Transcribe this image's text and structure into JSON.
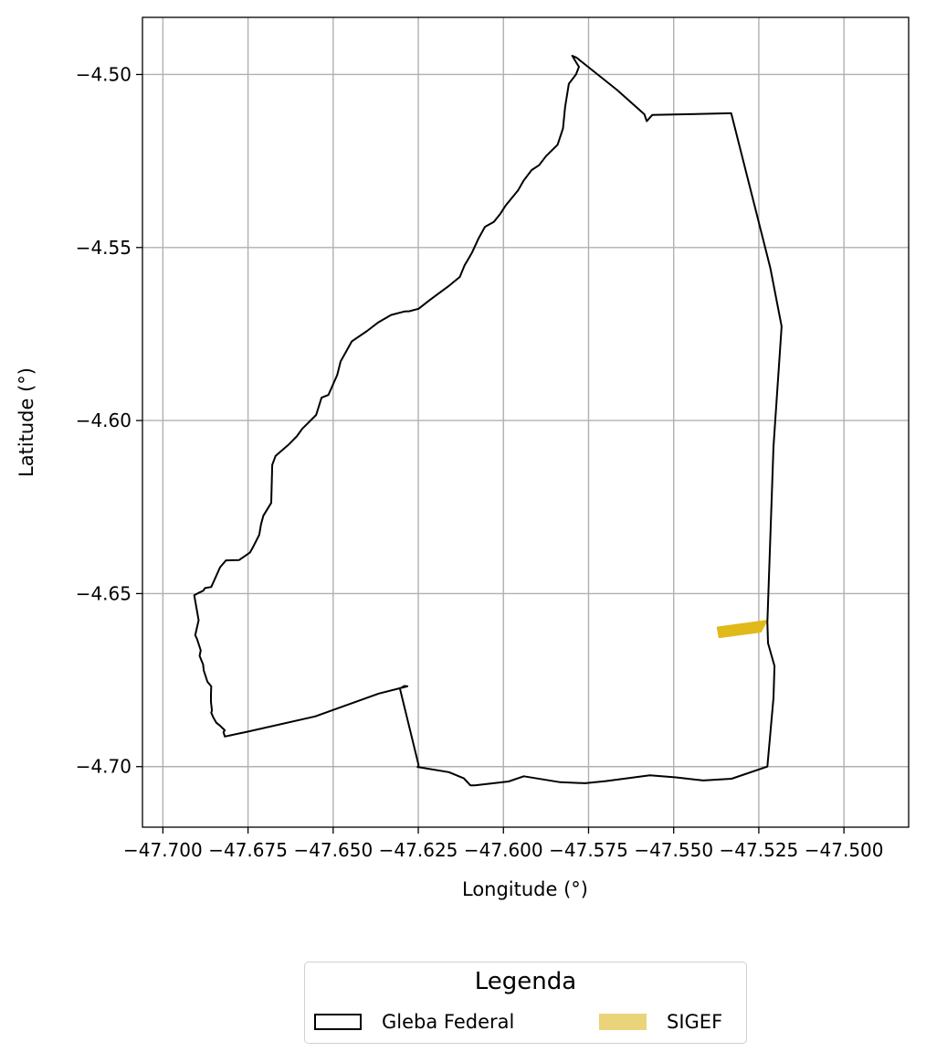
{
  "chart_data": {
    "type": "map",
    "xlabel": "Longitude (°)",
    "ylabel": "Latitude (°)",
    "xlim": [
      -47.706,
      -47.481
    ],
    "ylim": [
      -4.7175,
      -4.4835
    ],
    "xticks": [
      -47.7,
      -47.675,
      -47.65,
      -47.625,
      -47.6,
      -47.575,
      -47.55,
      -47.525,
      -47.5
    ],
    "xtick_labels": [
      "−47.700",
      "−47.675",
      "−47.650",
      "−47.625",
      "−47.600",
      "−47.575",
      "−47.550",
      "−47.525",
      "−47.500"
    ],
    "yticks": [
      -4.5,
      -4.55,
      -4.6,
      -4.65,
      -4.7
    ],
    "ytick_labels": [
      "−4.50",
      "−4.55",
      "−4.60",
      "−4.65",
      "−4.70"
    ],
    "grid": true,
    "legend_placement": "bottom-center",
    "legend": {
      "title": "Legenda",
      "entries": [
        {
          "label": "Gleba Federal",
          "style": "outline",
          "color": "#000000"
        },
        {
          "label": "SIGEF",
          "style": "fill",
          "color": "#e9d47a"
        }
      ]
    },
    "layers": [
      {
        "name": "Gleba Federal",
        "edge_color": "#000000",
        "fill": "none",
        "polygon": [
          [
            -47.5798,
            -4.4946
          ],
          [
            -47.5786,
            -4.4951
          ],
          [
            -47.5666,
            -4.5045
          ],
          [
            -47.5586,
            -4.5115
          ],
          [
            -47.5579,
            -4.5135
          ],
          [
            -47.5563,
            -4.5117
          ],
          [
            -47.5331,
            -4.5112
          ],
          [
            -47.5269,
            -4.5353
          ],
          [
            -47.5216,
            -4.556
          ],
          [
            -47.5183,
            -4.5728
          ],
          [
            -47.5207,
            -4.6075
          ],
          [
            -47.5225,
            -4.6583
          ],
          [
            -47.5223,
            -4.6643
          ],
          [
            -47.5204,
            -4.6709
          ],
          [
            -47.5207,
            -4.6801
          ],
          [
            -47.5225,
            -4.7
          ],
          [
            -47.533,
            -4.7035
          ],
          [
            -47.5413,
            -4.704
          ],
          [
            -47.5493,
            -4.7031
          ],
          [
            -47.557,
            -4.7025
          ],
          [
            -47.57,
            -4.7042
          ],
          [
            -47.576,
            -4.7048
          ],
          [
            -47.5833,
            -4.7045
          ],
          [
            -47.594,
            -4.7028
          ],
          [
            -47.5985,
            -4.7043
          ],
          [
            -47.6084,
            -4.7054
          ],
          [
            -47.6097,
            -4.7054
          ],
          [
            -47.6116,
            -4.7034
          ],
          [
            -47.616,
            -4.7016
          ],
          [
            -47.6252,
            -4.7001
          ],
          [
            -47.6249,
            -4.6996
          ],
          [
            -47.6304,
            -4.6774
          ],
          [
            -47.6291,
            -4.6767
          ],
          [
            -47.6282,
            -4.6768
          ],
          [
            -47.6366,
            -4.6789
          ],
          [
            -47.6553,
            -4.6855
          ],
          [
            -47.6751,
            -4.6899
          ],
          [
            -47.6818,
            -4.6913
          ],
          [
            -47.6822,
            -4.69
          ],
          [
            -47.6818,
            -4.6895
          ],
          [
            -47.6833,
            -4.6881
          ],
          [
            -47.6843,
            -4.6873
          ],
          [
            -47.6852,
            -4.6858
          ],
          [
            -47.6858,
            -4.6844
          ],
          [
            -47.6856,
            -4.6838
          ],
          [
            -47.6859,
            -4.6813
          ],
          [
            -47.6859,
            -4.6793
          ],
          [
            -47.6858,
            -4.6768
          ],
          [
            -47.6869,
            -4.6755
          ],
          [
            -47.688,
            -4.6722
          ],
          [
            -47.6882,
            -4.6705
          ],
          [
            -47.6892,
            -4.668
          ],
          [
            -47.6889,
            -4.6664
          ],
          [
            -47.69,
            -4.6631
          ],
          [
            -47.6905,
            -4.662
          ],
          [
            -47.6895,
            -4.6577
          ],
          [
            -47.6908,
            -4.6505
          ],
          [
            -47.6893,
            -4.6497
          ],
          [
            -47.6882,
            -4.6492
          ],
          [
            -47.6876,
            -4.6484
          ],
          [
            -47.6858,
            -4.6481
          ],
          [
            -47.6851,
            -4.6466
          ],
          [
            -47.6832,
            -4.6424
          ],
          [
            -47.6815,
            -4.6404
          ],
          [
            -47.6776,
            -4.6403
          ],
          [
            -47.6744,
            -4.6381
          ],
          [
            -47.6734,
            -4.6363
          ],
          [
            -47.6717,
            -4.633
          ],
          [
            -47.6712,
            -4.63
          ],
          [
            -47.6705,
            -4.6275
          ],
          [
            -47.6682,
            -4.6238
          ],
          [
            -47.6679,
            -4.6128
          ],
          [
            -47.6669,
            -4.6102
          ],
          [
            -47.663,
            -4.6069
          ],
          [
            -47.6607,
            -4.6046
          ],
          [
            -47.6591,
            -4.6024
          ],
          [
            -47.655,
            -4.5984
          ],
          [
            -47.6534,
            -4.5934
          ],
          [
            -47.6514,
            -4.5926
          ],
          [
            -47.6488,
            -4.5868
          ],
          [
            -47.6478,
            -4.5829
          ],
          [
            -47.6445,
            -4.5771
          ],
          [
            -47.64,
            -4.5741
          ],
          [
            -47.6367,
            -4.5716
          ],
          [
            -47.633,
            -4.5695
          ],
          [
            -47.6291,
            -4.5685
          ],
          [
            -47.6276,
            -4.5684
          ],
          [
            -47.6249,
            -4.5677
          ],
          [
            -47.6218,
            -4.5653
          ],
          [
            -47.6163,
            -4.5613
          ],
          [
            -47.6128,
            -4.5585
          ],
          [
            -47.6114,
            -4.5551
          ],
          [
            -47.6107,
            -4.554
          ],
          [
            -47.6092,
            -4.5514
          ],
          [
            -47.6073,
            -4.5474
          ],
          [
            -47.6054,
            -4.544
          ],
          [
            -47.6028,
            -4.5426
          ],
          [
            -47.601,
            -4.5404
          ],
          [
            -47.5993,
            -4.5378
          ],
          [
            -47.5957,
            -4.5335
          ],
          [
            -47.594,
            -4.5306
          ],
          [
            -47.5917,
            -4.5276
          ],
          [
            -47.5895,
            -4.5262
          ],
          [
            -47.5875,
            -4.5236
          ],
          [
            -47.5841,
            -4.5203
          ],
          [
            -47.5825,
            -4.5156
          ],
          [
            -47.5819,
            -4.5094
          ],
          [
            -47.5808,
            -4.5027
          ],
          [
            -47.5787,
            -4.5
          ],
          [
            -47.5778,
            -4.4978
          ],
          [
            -47.5785,
            -4.4967
          ],
          [
            -47.5798,
            -4.4946
          ]
        ]
      },
      {
        "name": "SIGEF",
        "edge_color": "#e0b91a",
        "fill": "#e0b91a",
        "polygon": [
          [
            -47.5371,
            -4.6598
          ],
          [
            -47.5366,
            -4.6626
          ],
          [
            -47.5245,
            -4.661
          ],
          [
            -47.5227,
            -4.6579
          ],
          [
            -47.5371,
            -4.6598
          ]
        ]
      }
    ]
  }
}
